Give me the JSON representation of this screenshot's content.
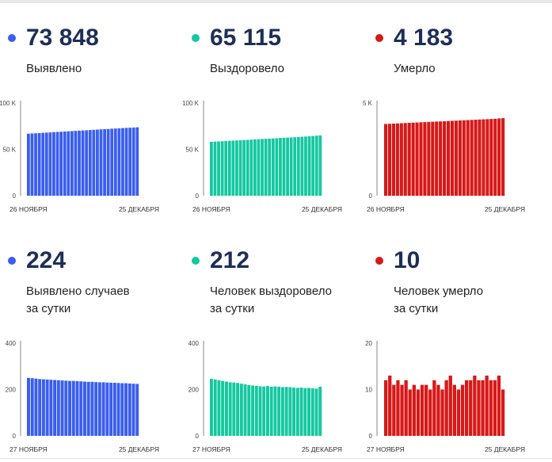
{
  "colors": {
    "blue": "#3a5ef0",
    "teal": "#14c8a0",
    "red": "#d81818"
  },
  "panels": [
    {
      "value": "73 848",
      "label": [
        "Выявлено"
      ],
      "color": "blue"
    },
    {
      "value": "65 115",
      "label": [
        "Выздоровело"
      ],
      "color": "teal"
    },
    {
      "value": "4 183",
      "label": [
        "Умерло"
      ],
      "color": "red"
    },
    {
      "value": "224",
      "label": [
        "Выявлено случаев",
        "за сутки"
      ],
      "color": "blue"
    },
    {
      "value": "212",
      "label": [
        "Человек выздоровело",
        "за сутки"
      ],
      "color": "teal"
    },
    {
      "value": "10",
      "label": [
        "Человек умерло",
        "за сутки"
      ],
      "color": "red"
    }
  ],
  "chart_data": [
    {
      "type": "bar",
      "title": "",
      "yticks": [
        "0",
        "50 K",
        "100 K"
      ],
      "ylim": [
        0,
        100000
      ],
      "x_start": "26 НОЯБРЯ",
      "x_end": "25 ДЕКАБРЯ",
      "values": [
        66900,
        67200,
        67400,
        67600,
        67900,
        68100,
        68300,
        68600,
        68800,
        69000,
        69300,
        69500,
        69700,
        70000,
        70200,
        70400,
        70600,
        70900,
        71100,
        71300,
        71600,
        71800,
        72000,
        72300,
        72500,
        72700,
        73000,
        73200,
        73400,
        73600,
        73848
      ]
    },
    {
      "type": "bar",
      "title": "",
      "yticks": [
        "0",
        "50 K",
        "100 K"
      ],
      "ylim": [
        0,
        100000
      ],
      "x_start": "26 НОЯБРЯ",
      "x_end": "25 ДЕКАБРЯ",
      "values": [
        58200,
        58400,
        58600,
        58800,
        59000,
        59300,
        59500,
        59700,
        59900,
        60100,
        60300,
        60500,
        60800,
        61000,
        61200,
        61400,
        61600,
        61800,
        62000,
        62300,
        62500,
        62700,
        62900,
        63100,
        63400,
        63600,
        63900,
        64200,
        64500,
        64800,
        65115
      ]
    },
    {
      "type": "bar",
      "title": "",
      "yticks": [
        "0",
        "5 K"
      ],
      "ylim": [
        0,
        5000
      ],
      "x_start": "26 НОЯБРЯ",
      "x_end": "25 ДЕКАБРЯ",
      "values": [
        3870,
        3880,
        3890,
        3900,
        3910,
        3920,
        3930,
        3940,
        3950,
        3960,
        3970,
        3980,
        3990,
        4000,
        4010,
        4020,
        4030,
        4040,
        4050,
        4060,
        4070,
        4080,
        4090,
        4100,
        4110,
        4120,
        4130,
        4140,
        4150,
        4170,
        4183
      ]
    },
    {
      "type": "bar",
      "title": "",
      "yticks": [
        "0",
        "200",
        "400"
      ],
      "ylim": [
        0,
        400
      ],
      "x_start": "27 НОЯБРЯ",
      "x_end": "25 ДЕКАБРЯ",
      "values": [
        250,
        249,
        247,
        245,
        244,
        243,
        242,
        241,
        240,
        239,
        238,
        237,
        237,
        236,
        235,
        234,
        233,
        233,
        232,
        231,
        231,
        230,
        229,
        229,
        228,
        227,
        227,
        226,
        225,
        224
      ]
    },
    {
      "type": "bar",
      "title": "",
      "yticks": [
        "0",
        "200",
        "400"
      ],
      "ylim": [
        0,
        400
      ],
      "x_start": "27 НОЯБРЯ",
      "x_end": "25 ДЕКАБРЯ",
      "values": [
        246,
        243,
        240,
        237,
        234,
        231,
        230,
        228,
        225,
        222,
        219,
        217,
        216,
        214,
        213,
        215,
        212,
        213,
        212,
        210,
        211,
        210,
        208,
        207,
        208,
        206,
        207,
        205,
        204,
        212
      ]
    },
    {
      "type": "bar",
      "title": "",
      "yticks": [
        "0",
        "10",
        "20"
      ],
      "ylim": [
        0,
        20
      ],
      "x_start": "27 НОЯБРЯ",
      "x_end": "25 ДЕКАБРЯ",
      "values": [
        12,
        13,
        11,
        12,
        11,
        12,
        10,
        11,
        10,
        11,
        11,
        10,
        12,
        11,
        10,
        12,
        13,
        11,
        10,
        11,
        12,
        12,
        13,
        12,
        12,
        13,
        12,
        12,
        13,
        10
      ]
    }
  ]
}
